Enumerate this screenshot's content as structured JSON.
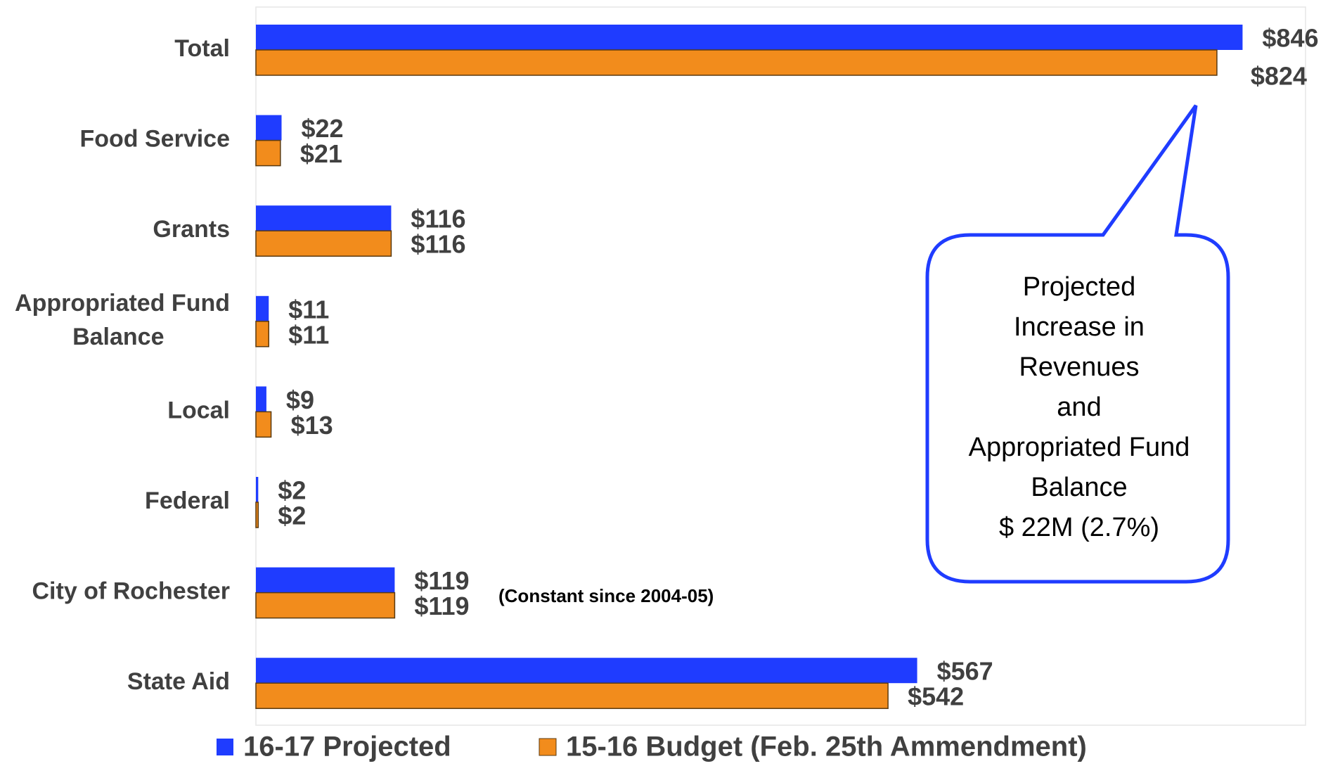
{
  "chart_data": {
    "type": "bar",
    "orientation": "horizontal",
    "categories": [
      "Total",
      "Food Service",
      "Grants",
      "Appropriated Fund Balance",
      "Local",
      "Federal",
      "City of Rochester",
      "State Aid"
    ],
    "series": [
      {
        "name": "16-17 Projected",
        "color": "#1f3cff",
        "values": [
          846,
          22,
          116,
          11,
          9,
          2,
          119,
          567
        ],
        "value_labels": [
          "$846",
          "$22",
          "$116",
          "$11",
          "$9",
          "$2",
          "$119",
          "$567"
        ]
      },
      {
        "name": "15-16 Budget (Feb. 25th Ammendment)",
        "color": "#f28c1c",
        "values": [
          824,
          21,
          116,
          11,
          13,
          2,
          119,
          542
        ],
        "value_labels": [
          "$824",
          "$21",
          "$116",
          "$11",
          "$13",
          "$2",
          "$119",
          "$542"
        ]
      }
    ],
    "xlim": [
      0,
      900
    ],
    "annotations": [
      "(Constant since 2004-05)"
    ],
    "callout": [
      "Projected",
      "Increase in",
      "Revenues",
      "and",
      "Appropriated Fund",
      "Balance",
      "$ 22M (2.7%)"
    ],
    "legend": "bottom"
  }
}
